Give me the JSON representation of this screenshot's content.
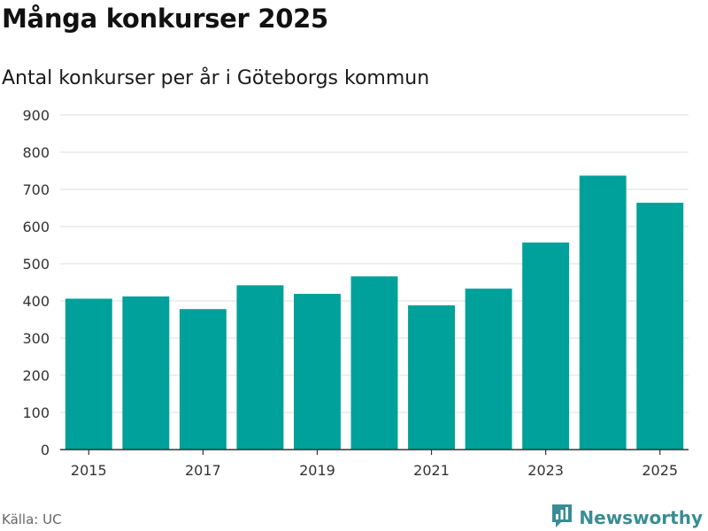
{
  "header": {
    "title": "Många konkurser 2025",
    "subtitle": "Antal konkurser per år i Göteborgs kommun"
  },
  "footer": {
    "source": "Källa: UC",
    "brand": "Newsworthy",
    "brand_icon": "bar-chart-logo-icon"
  },
  "colors": {
    "bar": "#00a19a",
    "brand": "#3a8d94"
  },
  "chart_data": {
    "type": "bar",
    "title": "Många konkurser 2025",
    "subtitle": "Antal konkurser per år i Göteborgs kommun",
    "xlabel": "",
    "ylabel": "",
    "categories": [
      "2015",
      "2016",
      "2017",
      "2018",
      "2019",
      "2020",
      "2021",
      "2022",
      "2023",
      "2024",
      "2025"
    ],
    "x_tick_labels": [
      "2015",
      "2017",
      "2019",
      "2021",
      "2023",
      "2025"
    ],
    "values": [
      406,
      412,
      378,
      442,
      419,
      466,
      388,
      433,
      557,
      737,
      664
    ],
    "ylim": [
      0,
      900
    ],
    "y_ticks": [
      0,
      100,
      200,
      300,
      400,
      500,
      600,
      700,
      800,
      900
    ],
    "grid": "horizontal",
    "legend": "none",
    "source": "Källa: UC"
  }
}
